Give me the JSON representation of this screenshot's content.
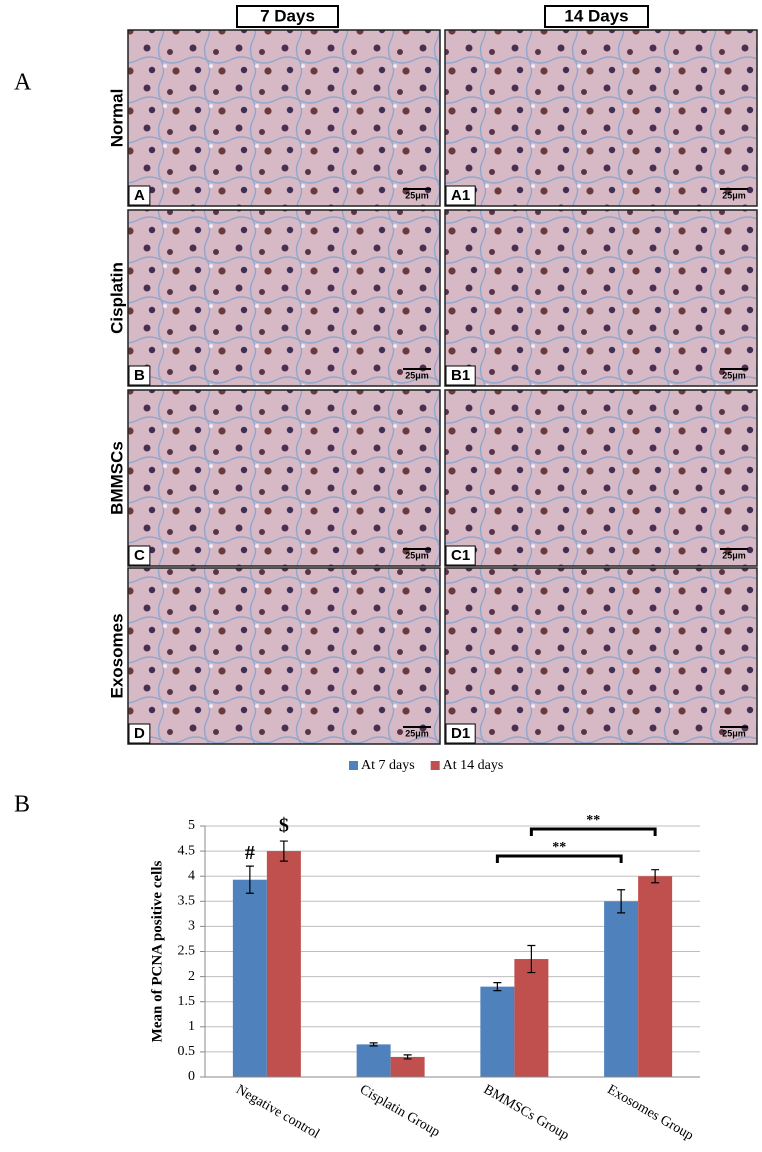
{
  "panel_labels": [
    "A",
    "B"
  ],
  "micrographs": {
    "columns": [
      "7 Days",
      "14 Days"
    ],
    "rows": [
      "Normal",
      "Cisplatin",
      "BMMSCs",
      "Exosomes"
    ],
    "panels": [
      [
        "A",
        "A1"
      ],
      [
        "B",
        "B1"
      ],
      [
        "C",
        "C1"
      ],
      [
        "D",
        "D1"
      ]
    ],
    "scale_bar": "25μm"
  },
  "chart_data": {
    "type": "bar",
    "ylabel": "Mean of PCNA  positive cells",
    "categories": [
      "Negative control",
      "Cisplatin Group",
      "BMMSCs Group",
      "Exosomes Group"
    ],
    "series": [
      {
        "name": "At 7 days",
        "color": "#4f81bd",
        "values": [
          3.93,
          0.65,
          1.8,
          3.5
        ],
        "errors": [
          0.27,
          0.03,
          0.08,
          0.23
        ]
      },
      {
        "name": "At 14 days",
        "color": "#c0504d",
        "values": [
          4.5,
          0.4,
          2.35,
          4.0
        ],
        "errors": [
          0.2,
          0.04,
          0.27,
          0.13
        ]
      }
    ],
    "ylim": [
      0,
      5
    ],
    "yticks": [
      0,
      0.5,
      1,
      1.5,
      2,
      2.5,
      3,
      3.5,
      4,
      4.5,
      5
    ],
    "grid": true,
    "legend": "top",
    "annotations": [
      "#",
      "$",
      "**",
      "**"
    ]
  }
}
